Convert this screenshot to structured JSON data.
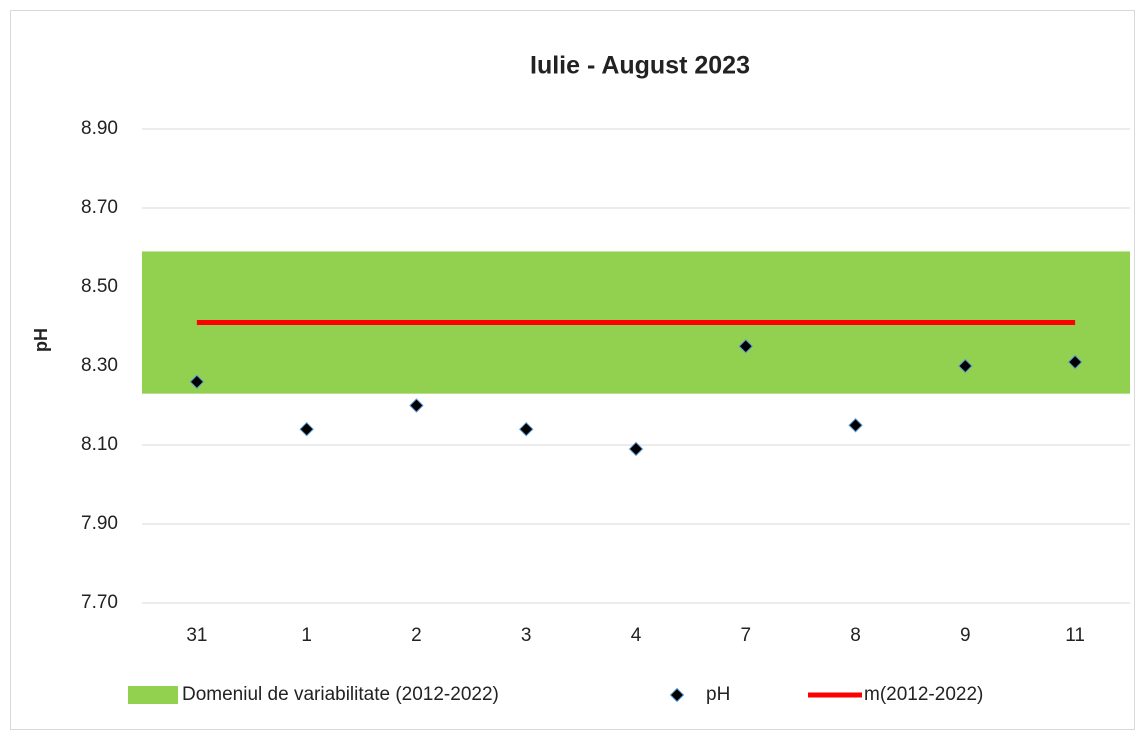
{
  "chart_data": {
    "type": "combo",
    "title": "Iulie - August 2023",
    "y_label": "pH",
    "categories": [
      "31",
      "1",
      "2",
      "3",
      "4",
      "7",
      "8",
      "9",
      "11"
    ],
    "ylim": [
      7.7,
      8.9
    ],
    "yticks": [
      {
        "value": 7.7,
        "label": "7.70"
      },
      {
        "value": 7.9,
        "label": "7.90"
      },
      {
        "value": 8.1,
        "label": "8.10"
      },
      {
        "value": 8.3,
        "label": "8.30"
      },
      {
        "value": 8.5,
        "label": "8.50"
      },
      {
        "value": 8.7,
        "label": "8.70"
      },
      {
        "value": 8.9,
        "label": "8.90"
      }
    ],
    "grid": true,
    "legend": "bottom",
    "series": [
      {
        "name": "Domeniul de variabilitate (2012-2022)",
        "type": "band",
        "color": "#92d050",
        "range": [
          8.23,
          8.59
        ]
      },
      {
        "name": "pH",
        "type": "scatter",
        "color": "#000000",
        "values": [
          8.26,
          8.14,
          8.2,
          8.14,
          8.09,
          8.35,
          8.15,
          8.3,
          8.31
        ]
      },
      {
        "name": "m(2012-2022)",
        "type": "line",
        "color": "#ff0000",
        "values": [
          8.41,
          8.41,
          8.41,
          8.41,
          8.41,
          8.41,
          8.41,
          8.41,
          8.41
        ]
      }
    ]
  }
}
